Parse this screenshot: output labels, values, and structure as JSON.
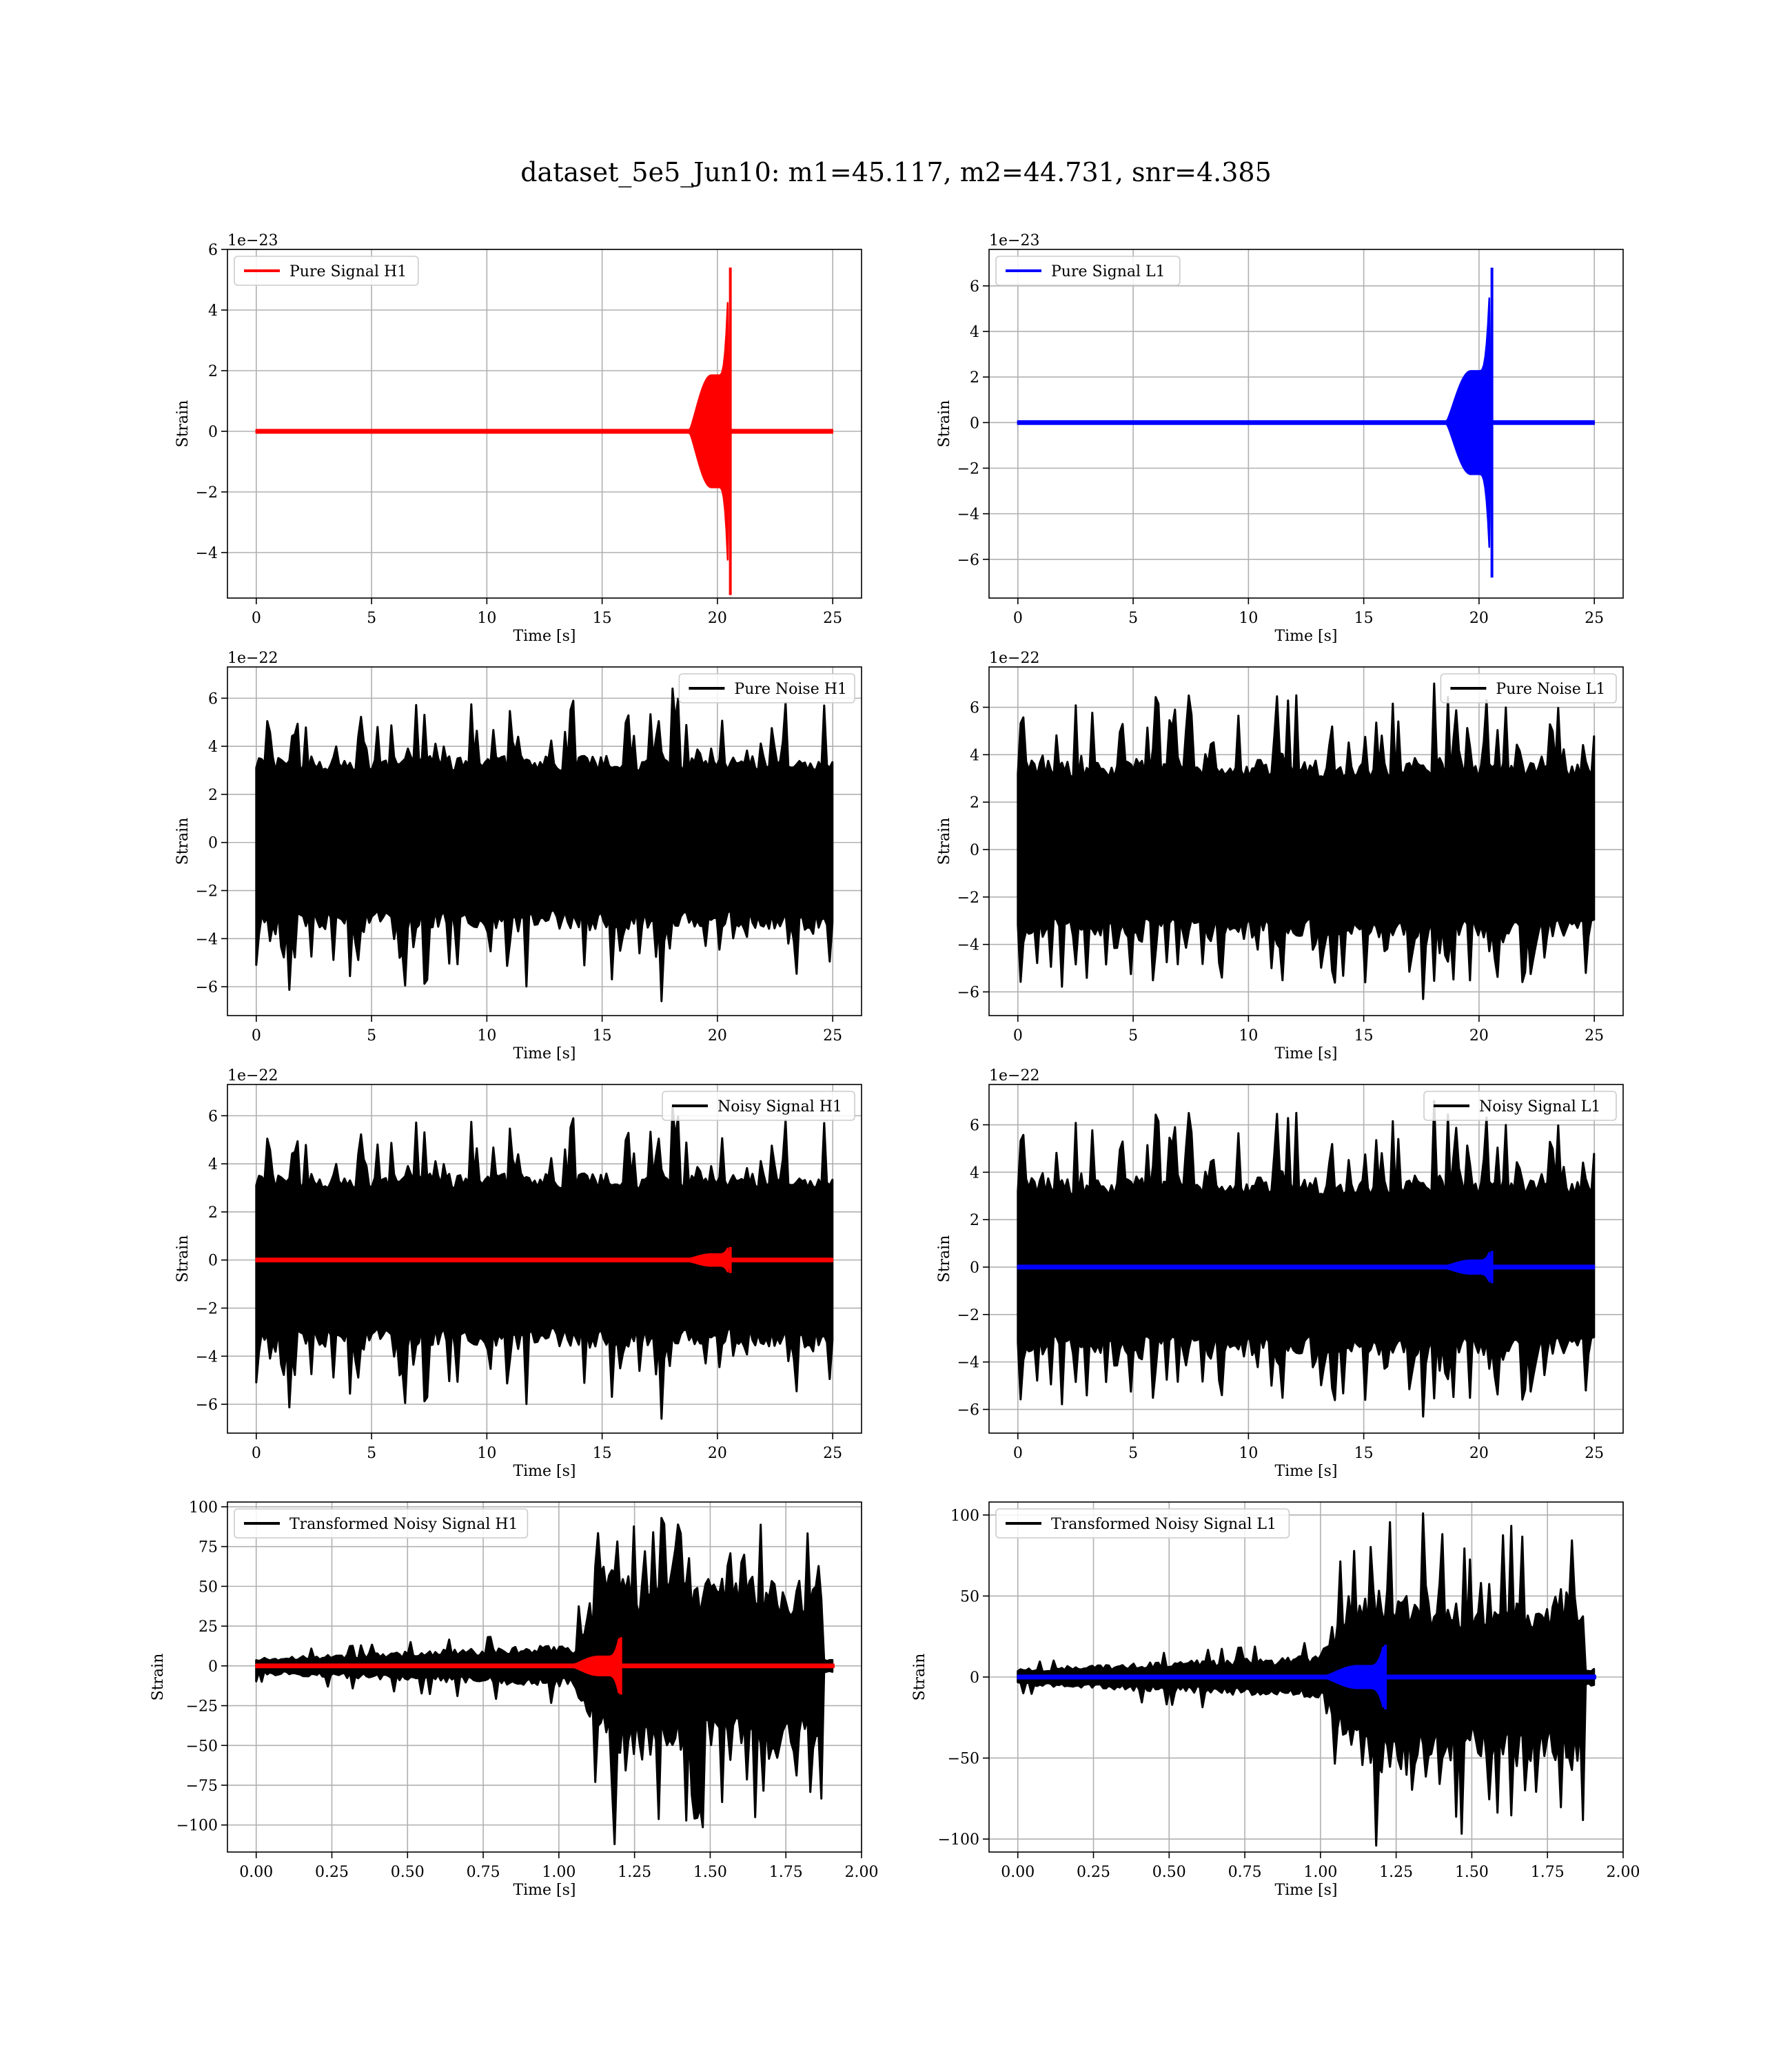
{
  "title": "dataset_5e5_Jun10: m1=45.117, m2=44.731, snr=4.385",
  "colors": {
    "h1_signal": "#ff0000",
    "l1_signal": "#0000ff",
    "noise": "#000000",
    "grid": "#b0b0b0"
  },
  "chart_data": [
    {
      "type": "line",
      "xlabel": "Time [s]",
      "ylabel": "Strain",
      "offset_text": "1e−23",
      "xlim": [
        -1.25,
        26.25
      ],
      "ylim": [
        -5.5,
        6.0
      ],
      "xticks": [
        0,
        5,
        10,
        15,
        20,
        25
      ],
      "xtick_labels": [
        "0",
        "5",
        "10",
        "15",
        "20",
        "25"
      ],
      "yticks": [
        -4,
        -2,
        0,
        2,
        4,
        6
      ],
      "ytick_labels": [
        "−4",
        "−2",
        "0",
        "2",
        "4",
        "6"
      ],
      "grid": true,
      "legend_position": "upper left",
      "series": [
        {
          "name": "Pure Signal H1",
          "color": "#ff0000",
          "kind": "chirp",
          "in_legend": true,
          "t_start": 0,
          "t_end": 25,
          "t_merger": 20.5,
          "burst_start": 18.8,
          "amp": 5.4,
          "shoulder": 1.8
        }
      ]
    },
    {
      "type": "line",
      "xlabel": "Time [s]",
      "ylabel": "Strain",
      "offset_text": "1e−23",
      "xlim": [
        -1.25,
        26.25
      ],
      "ylim": [
        -7.7,
        7.6
      ],
      "xticks": [
        0,
        5,
        10,
        15,
        20,
        25
      ],
      "xtick_labels": [
        "0",
        "5",
        "10",
        "15",
        "20",
        "25"
      ],
      "yticks": [
        -6,
        -4,
        -2,
        0,
        2,
        4,
        6
      ],
      "ytick_labels": [
        "−6",
        "−4",
        "−2",
        "0",
        "2",
        "4",
        "6"
      ],
      "grid": true,
      "legend_position": "upper left",
      "series": [
        {
          "name": "Pure Signal L1",
          "color": "#0000ff",
          "kind": "chirp",
          "in_legend": true,
          "t_start": 0,
          "t_end": 25,
          "t_merger": 20.5,
          "burst_start": 18.6,
          "amp": 6.8,
          "shoulder": 2.2
        }
      ]
    },
    {
      "type": "line",
      "xlabel": "Time [s]",
      "ylabel": "Strain",
      "offset_text": "1e−22",
      "xlim": [
        -1.25,
        26.25
      ],
      "ylim": [
        -7.2,
        7.3
      ],
      "xticks": [
        0,
        5,
        10,
        15,
        20,
        25
      ],
      "xtick_labels": [
        "0",
        "5",
        "10",
        "15",
        "20",
        "25"
      ],
      "yticks": [
        -6,
        -4,
        -2,
        0,
        2,
        4,
        6
      ],
      "ytick_labels": [
        "−6",
        "−4",
        "−2",
        "0",
        "2",
        "4",
        "6"
      ],
      "grid": true,
      "legend_position": "upper right",
      "series": [
        {
          "name": "Pure Noise H1",
          "color": "#000000",
          "kind": "noise",
          "in_legend": true,
          "t_start": 0,
          "t_end": 25,
          "dense": 3.6,
          "peak_max": 6.4,
          "trough_min": -6.6,
          "seed": 11
        }
      ]
    },
    {
      "type": "line",
      "xlabel": "Time [s]",
      "ylabel": "Strain",
      "offset_text": "1e−22",
      "xlim": [
        -1.25,
        26.25
      ],
      "ylim": [
        -7.0,
        7.7
      ],
      "xticks": [
        0,
        5,
        10,
        15,
        20,
        25
      ],
      "xtick_labels": [
        "0",
        "5",
        "10",
        "15",
        "20",
        "25"
      ],
      "yticks": [
        -6,
        -4,
        -2,
        0,
        2,
        4,
        6
      ],
      "ytick_labels": [
        "−6",
        "−4",
        "−2",
        "0",
        "2",
        "4",
        "6"
      ],
      "grid": true,
      "legend_position": "upper right",
      "series": [
        {
          "name": "Pure Noise L1",
          "color": "#000000",
          "kind": "noise",
          "in_legend": true,
          "t_start": 0,
          "t_end": 25,
          "dense": 3.7,
          "peak_max": 7.0,
          "trough_min": -6.3,
          "seed": 23
        }
      ]
    },
    {
      "type": "line",
      "xlabel": "Time [s]",
      "ylabel": "Strain",
      "offset_text": "1e−22",
      "xlim": [
        -1.25,
        26.25
      ],
      "ylim": [
        -7.2,
        7.3
      ],
      "xticks": [
        0,
        5,
        10,
        15,
        20,
        25
      ],
      "xtick_labels": [
        "0",
        "5",
        "10",
        "15",
        "20",
        "25"
      ],
      "yticks": [
        -6,
        -4,
        -2,
        0,
        2,
        4,
        6
      ],
      "ytick_labels": [
        "−6",
        "−4",
        "−2",
        "0",
        "2",
        "4",
        "6"
      ],
      "grid": true,
      "legend_position": "upper right",
      "series": [
        {
          "name": "Noisy Signal H1",
          "color": "#000000",
          "kind": "noise",
          "in_legend": true,
          "t_start": 0,
          "t_end": 25,
          "dense": 3.6,
          "peak_max": 6.4,
          "trough_min": -6.6,
          "seed": 11
        },
        {
          "name": "",
          "color": "#ff0000",
          "kind": "chirp",
          "in_legend": false,
          "t_start": 0,
          "t_end": 25,
          "t_merger": 20.5,
          "burst_start": 18.8,
          "amp": 0.54,
          "shoulder": 0.18
        }
      ]
    },
    {
      "type": "line",
      "xlabel": "Time [s]",
      "ylabel": "Strain",
      "offset_text": "1e−22",
      "xlim": [
        -1.25,
        26.25
      ],
      "ylim": [
        -7.0,
        7.7
      ],
      "xticks": [
        0,
        5,
        10,
        15,
        20,
        25
      ],
      "xtick_labels": [
        "0",
        "5",
        "10",
        "15",
        "20",
        "25"
      ],
      "yticks": [
        -6,
        -4,
        -2,
        0,
        2,
        4,
        6
      ],
      "ytick_labels": [
        "−6",
        "−4",
        "−2",
        "0",
        "2",
        "4",
        "6"
      ],
      "grid": true,
      "legend_position": "upper right",
      "series": [
        {
          "name": "Noisy Signal L1",
          "color": "#000000",
          "kind": "noise",
          "in_legend": true,
          "t_start": 0,
          "t_end": 25,
          "dense": 3.7,
          "peak_max": 7.0,
          "trough_min": -6.3,
          "seed": 23
        },
        {
          "name": "",
          "color": "#0000ff",
          "kind": "chirp",
          "in_legend": false,
          "t_start": 0,
          "t_end": 25,
          "t_merger": 20.5,
          "burst_start": 18.6,
          "amp": 0.68,
          "shoulder": 0.22
        }
      ]
    },
    {
      "type": "line",
      "xlabel": "Time [s]",
      "ylabel": "Strain",
      "offset_text": "",
      "xlim": [
        -0.095,
        2.0
      ],
      "ylim": [
        -117,
        103
      ],
      "xticks": [
        0,
        0.25,
        0.5,
        0.75,
        1.0,
        1.25,
        1.5,
        1.75,
        2.0
      ],
      "xtick_labels": [
        "0.00",
        "0.25",
        "0.50",
        "0.75",
        "1.00",
        "1.25",
        "1.50",
        "1.75",
        "2.00"
      ],
      "yticks": [
        -100,
        -75,
        -50,
        -25,
        0,
        25,
        50,
        75,
        100
      ],
      "ytick_labels": [
        "−100",
        "−75",
        "−50",
        "−25",
        "0",
        "25",
        "50",
        "75",
        "100"
      ],
      "grid": true,
      "legend_position": "upper left",
      "series": [
        {
          "name": "Transformed Noisy Signal H1",
          "color": "#000000",
          "kind": "transformed",
          "in_legend": true,
          "t_start": 0,
          "t_end": 1.91,
          "t_rise": 1.05,
          "t_cut": 1.87,
          "low": 9,
          "high": 55,
          "peak_max": 93,
          "trough_min": -112,
          "seed": 37
        },
        {
          "name": "",
          "color": "#ff0000",
          "kind": "chirp",
          "in_legend": false,
          "t_start": 0,
          "t_end": 1.91,
          "t_merger": 1.2,
          "burst_start": 1.05,
          "amp": 18,
          "shoulder": 5
        }
      ]
    },
    {
      "type": "line",
      "xlabel": "Time [s]",
      "ylabel": "Strain",
      "offset_text": "",
      "xlim": [
        -0.095,
        2.0
      ],
      "ylim": [
        -108,
        108
      ],
      "xticks": [
        0,
        0.25,
        0.5,
        0.75,
        1.0,
        1.25,
        1.5,
        1.75,
        2.0
      ],
      "xtick_labels": [
        "0.00",
        "0.25",
        "0.50",
        "0.75",
        "1.00",
        "1.25",
        "1.50",
        "1.75",
        "2.00"
      ],
      "yticks": [
        -100,
        -50,
        0,
        50,
        100
      ],
      "ytick_labels": [
        "−100",
        "−50",
        "0",
        "50",
        "100"
      ],
      "grid": true,
      "legend_position": "upper left",
      "series": [
        {
          "name": "Transformed Noisy Signal L1",
          "color": "#000000",
          "kind": "transformed",
          "in_legend": true,
          "t_start": 0,
          "t_end": 1.91,
          "t_rise": 1.0,
          "t_cut": 1.87,
          "low": 9,
          "high": 52,
          "peak_max": 101,
          "trough_min": -104,
          "seed": 53
        },
        {
          "name": "",
          "color": "#0000ff",
          "kind": "chirp",
          "in_legend": false,
          "t_start": 0,
          "t_end": 1.91,
          "t_merger": 1.21,
          "burst_start": 1.02,
          "amp": 20,
          "shoulder": 6
        }
      ]
    }
  ]
}
